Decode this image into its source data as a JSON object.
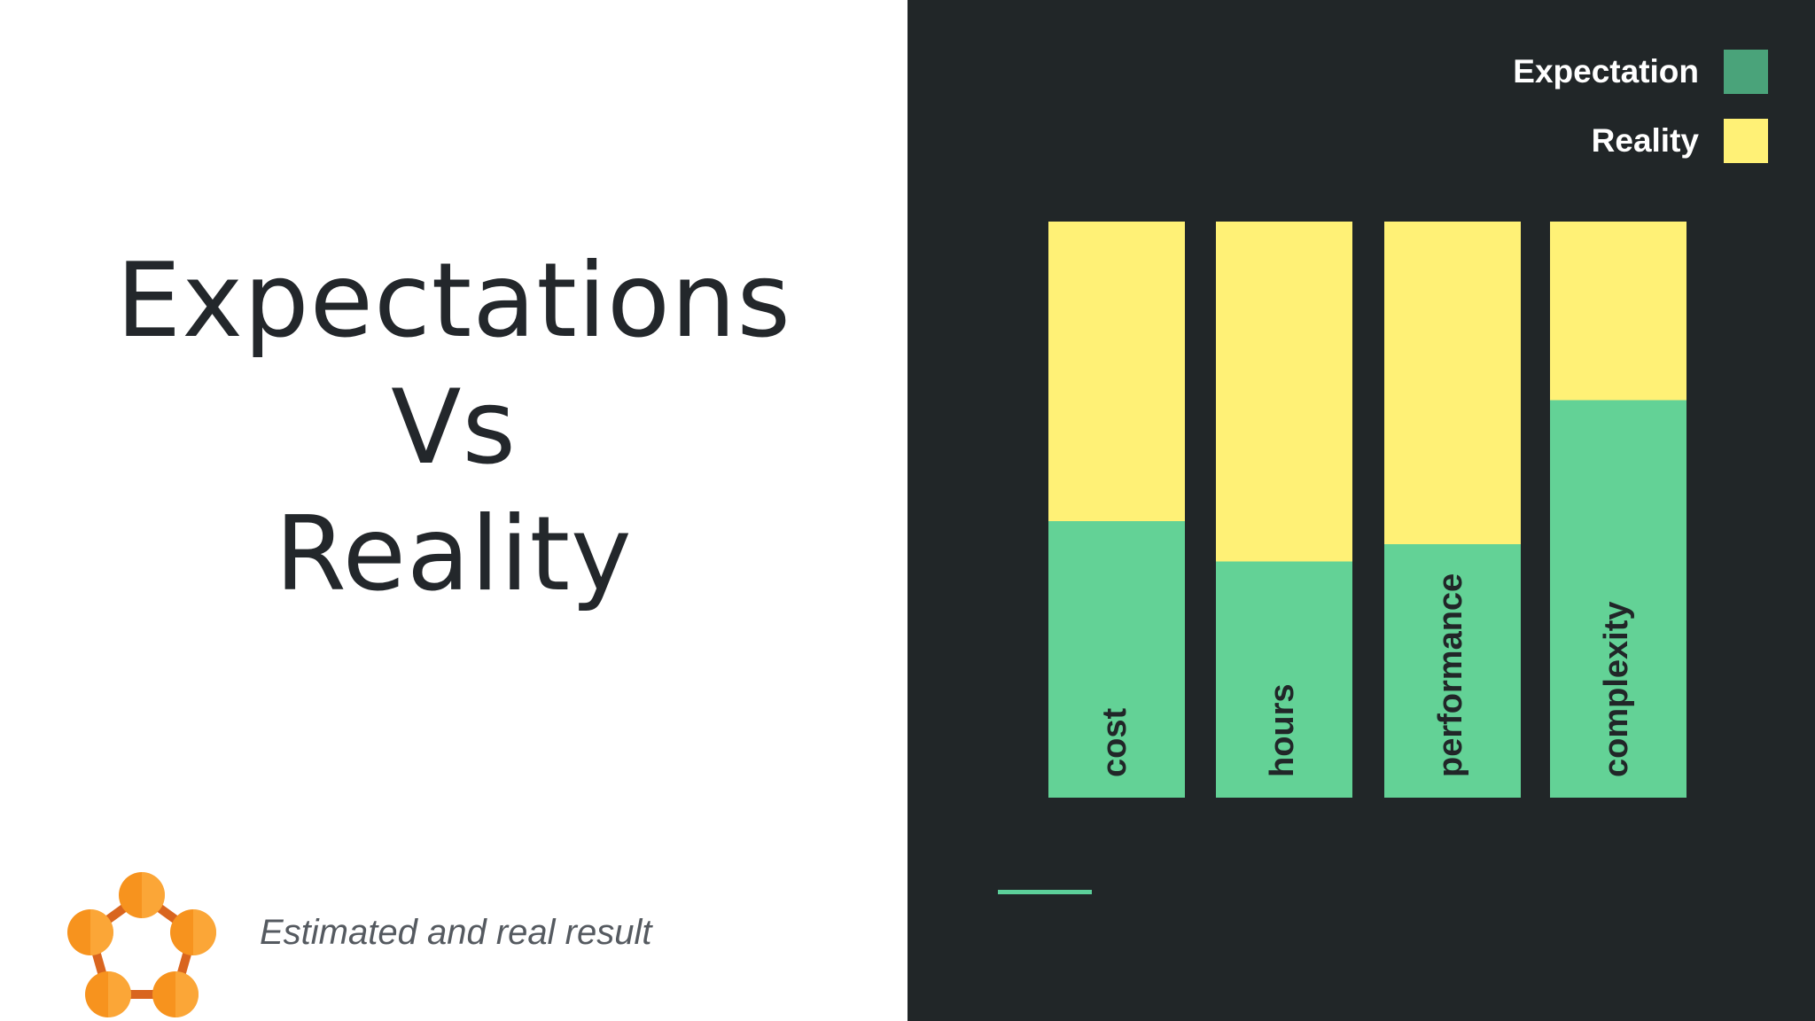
{
  "slide": {
    "title_lines": [
      "Expectations",
      "Vs",
      "Reality"
    ],
    "caption": "Estimated and real result",
    "logo_icon": "pentagon-network-icon"
  },
  "colors": {
    "expectation": "#63d296",
    "reality": "#fff176",
    "legend_expectation": "#4aa37a",
    "accent_line": "#5ccf9a",
    "dark_bg": "#212628"
  },
  "chart_data": {
    "type": "bar",
    "stacked": true,
    "categories": [
      "cost",
      "hours",
      "performance",
      "complexity"
    ],
    "series": [
      {
        "name": "Expectation",
        "values": [
          48,
          41,
          44,
          69
        ]
      },
      {
        "name": "Reality",
        "values": [
          52,
          59,
          56,
          31
        ]
      }
    ],
    "ylim": [
      0,
      100
    ],
    "title": "",
    "xlabel": "",
    "ylabel": "",
    "legend": "top-right",
    "grid": false,
    "category_labels_inside_bars": true
  }
}
